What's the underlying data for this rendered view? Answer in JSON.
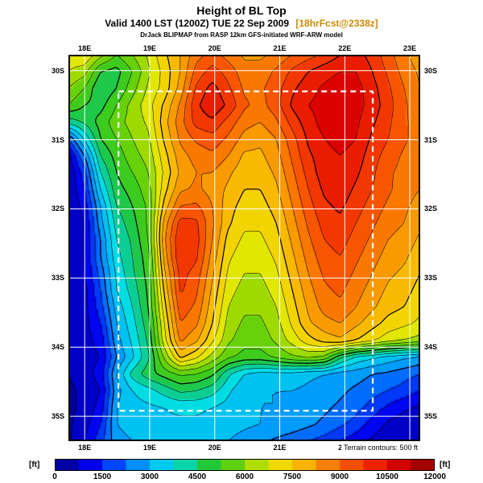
{
  "header": {
    "title": "Height of BL Top",
    "valid_line": "Valid 1400 LST (1200Z) TUE 22 Sep 2009",
    "forecast_tag": "[18hrFcst@2338z]",
    "model_line": "DrJack BLIPMAP from RASP 12km GFS-initiated WRF-ARW model"
  },
  "footer": {
    "terrain_note": "Terrain contours: 500 ft"
  },
  "colors": {
    "contour": "#000000",
    "grid_line": "#ffffff",
    "inner_box": "#ffffff",
    "frame": "#000000",
    "forecast_tag": "#cc8a00"
  },
  "colorbar": {
    "unit_label": "[ft]",
    "min_ft": 0,
    "max_ft": 12000,
    "segment_ft": 750,
    "ticks": [
      0,
      1500,
      3000,
      4500,
      6000,
      7500,
      9000,
      10500,
      12000
    ]
  },
  "chart_data": {
    "type": "heatmap",
    "title": "Height of BL Top",
    "units": "ft",
    "value_scale_ft_per_unit": 100,
    "lon_domain": [
      17.75,
      23.16
    ],
    "lat_domain": [
      29.77,
      35.36
    ],
    "lon_ticks": [
      {
        "value": 18,
        "label": "18E"
      },
      {
        "value": 19,
        "label": "19E"
      },
      {
        "value": 20,
        "label": "20E"
      },
      {
        "value": 21,
        "label": "21E"
      },
      {
        "value": 22,
        "label": "22E"
      },
      {
        "value": 23,
        "label": "23E"
      }
    ],
    "lat_ticks": [
      {
        "value": 30,
        "label": "30S"
      },
      {
        "value": 31,
        "label": "31S"
      },
      {
        "value": 32,
        "label": "32S"
      },
      {
        "value": 33,
        "label": "33S"
      },
      {
        "value": 34,
        "label": "34S"
      },
      {
        "value": 35,
        "label": "35S"
      }
    ],
    "inner_domain_box": {
      "lon_min": 18.52,
      "lon_max": 22.43,
      "lat_min": 30.3,
      "lat_max": 34.92
    },
    "contour_interval_ft": 500,
    "colormap_stops": [
      [
        0,
        "#000082"
      ],
      [
        1200,
        "#0000f0"
      ],
      [
        2200,
        "#0068ff"
      ],
      [
        3000,
        "#00b4f8"
      ],
      [
        3800,
        "#00e0e0"
      ],
      [
        4400,
        "#10c878"
      ],
      [
        5000,
        "#28c828"
      ],
      [
        6000,
        "#7cd400"
      ],
      [
        6800,
        "#e8e800"
      ],
      [
        7600,
        "#f8c400"
      ],
      [
        8400,
        "#f89000"
      ],
      [
        9200,
        "#f85800"
      ],
      [
        10000,
        "#f02800"
      ],
      [
        10800,
        "#d80000"
      ],
      [
        12000,
        "#8c0000"
      ]
    ],
    "grid_values_100ft": [
      [
        68,
        70,
        62,
        55,
        60,
        66,
        74,
        80,
        88,
        92,
        88,
        84,
        84,
        86,
        90,
        93,
        96,
        100,
        102,
        98,
        92,
        86,
        82
      ],
      [
        65,
        62,
        50,
        48,
        55,
        64,
        72,
        80,
        92,
        97,
        93,
        87,
        87,
        91,
        96,
        100,
        103,
        105,
        105,
        100,
        94,
        88,
        84
      ],
      [
        60,
        55,
        45,
        50,
        58,
        66,
        72,
        82,
        96,
        102,
        96,
        89,
        89,
        93,
        99,
        103,
        106,
        108,
        107,
        102,
        96,
        90,
        85
      ],
      [
        55,
        50,
        48,
        55,
        62,
        68,
        76,
        86,
        99,
        104,
        99,
        91,
        88,
        93,
        101,
        105,
        107,
        109,
        107,
        103,
        97,
        91,
        86
      ],
      [
        42,
        46,
        52,
        58,
        62,
        66,
        78,
        88,
        97,
        99,
        93,
        87,
        85,
        89,
        97,
        103,
        107,
        109,
        106,
        101,
        96,
        91,
        87
      ],
      [
        20,
        36,
        50,
        55,
        60,
        64,
        76,
        86,
        91,
        93,
        89,
        83,
        81,
        85,
        93,
        101,
        105,
        107,
        105,
        99,
        95,
        91,
        87
      ],
      [
        8,
        25,
        45,
        52,
        58,
        62,
        73,
        83,
        87,
        89,
        85,
        79,
        79,
        83,
        91,
        99,
        103,
        105,
        103,
        97,
        93,
        89,
        86
      ],
      [
        5,
        18,
        40,
        50,
        55,
        60,
        71,
        81,
        85,
        85,
        81,
        77,
        77,
        81,
        89,
        97,
        103,
        105,
        101,
        96,
        91,
        88,
        85
      ],
      [
        5,
        15,
        35,
        48,
        52,
        58,
        73,
        84,
        86,
        83,
        79,
        75,
        75,
        79,
        87,
        95,
        101,
        103,
        99,
        95,
        91,
        87,
        85
      ],
      [
        5,
        12,
        30,
        45,
        50,
        56,
        77,
        90,
        91,
        85,
        77,
        73,
        73,
        77,
        85,
        93,
        99,
        101,
        97,
        93,
        89,
        86,
        83
      ],
      [
        5,
        10,
        28,
        42,
        48,
        56,
        82,
        97,
        96,
        86,
        76,
        71,
        71,
        75,
        83,
        91,
        97,
        99,
        95,
        91,
        87,
        85,
        81
      ],
      [
        5,
        10,
        25,
        40,
        46,
        55,
        84,
        100,
        97,
        85,
        73,
        69,
        69,
        73,
        81,
        89,
        95,
        97,
        93,
        89,
        85,
        83,
        79
      ],
      [
        5,
        10,
        25,
        38,
        45,
        53,
        82,
        100,
        96,
        83,
        71,
        67,
        67,
        71,
        79,
        87,
        93,
        95,
        91,
        87,
        83,
        81,
        77
      ],
      [
        5,
        10,
        22,
        36,
        44,
        52,
        79,
        97,
        93,
        81,
        69,
        65,
        65,
        69,
        77,
        85,
        91,
        93,
        89,
        85,
        81,
        79,
        75
      ],
      [
        5,
        8,
        20,
        35,
        42,
        51,
        76,
        96,
        91,
        79,
        67,
        63,
        63,
        67,
        75,
        83,
        89,
        91,
        87,
        83,
        79,
        77,
        73
      ],
      [
        5,
        8,
        18,
        32,
        40,
        50,
        73,
        93,
        89,
        77,
        65,
        61,
        61,
        65,
        73,
        81,
        87,
        89,
        85,
        81,
        77,
        75,
        71
      ],
      [
        5,
        8,
        15,
        30,
        38,
        48,
        70,
        90,
        86,
        75,
        63,
        59,
        59,
        63,
        71,
        79,
        83,
        85,
        81,
        77,
        73,
        71,
        69
      ],
      [
        5,
        8,
        12,
        28,
        36,
        46,
        68,
        86,
        81,
        71,
        61,
        57,
        57,
        61,
        67,
        73,
        77,
        79,
        75,
        71,
        67,
        65,
        63
      ],
      [
        5,
        8,
        10,
        25,
        34,
        44,
        61,
        76,
        71,
        63,
        56,
        53,
        53,
        56,
        59,
        61,
        59,
        46,
        39,
        36,
        33,
        31,
        29
      ],
      [
        5,
        8,
        12,
        30,
        42,
        48,
        52,
        56,
        55,
        51,
        41,
        35,
        33,
        33,
        33,
        31,
        30,
        28,
        27,
        25,
        24,
        22,
        20
      ],
      [
        4,
        6,
        10,
        28,
        35,
        38,
        42,
        46,
        45,
        42,
        36,
        31,
        30,
        30,
        30,
        29,
        28,
        26,
        24,
        22,
        20,
        18,
        15
      ],
      [
        4,
        6,
        12,
        30,
        33,
        34,
        35,
        36,
        36,
        35,
        33,
        32,
        30,
        30,
        28,
        27,
        26,
        24,
        22,
        18,
        14,
        11,
        9
      ],
      [
        4,
        8,
        15,
        30,
        32,
        33,
        34,
        34,
        34,
        33,
        32,
        31,
        30,
        29,
        28,
        26,
        24,
        21,
        18,
        13,
        9,
        7,
        6
      ],
      [
        4,
        10,
        18,
        28,
        30,
        32,
        33,
        33,
        32,
        31,
        30,
        28,
        26,
        24,
        22,
        20,
        18,
        15,
        12,
        9,
        7,
        6,
        5
      ]
    ]
  }
}
